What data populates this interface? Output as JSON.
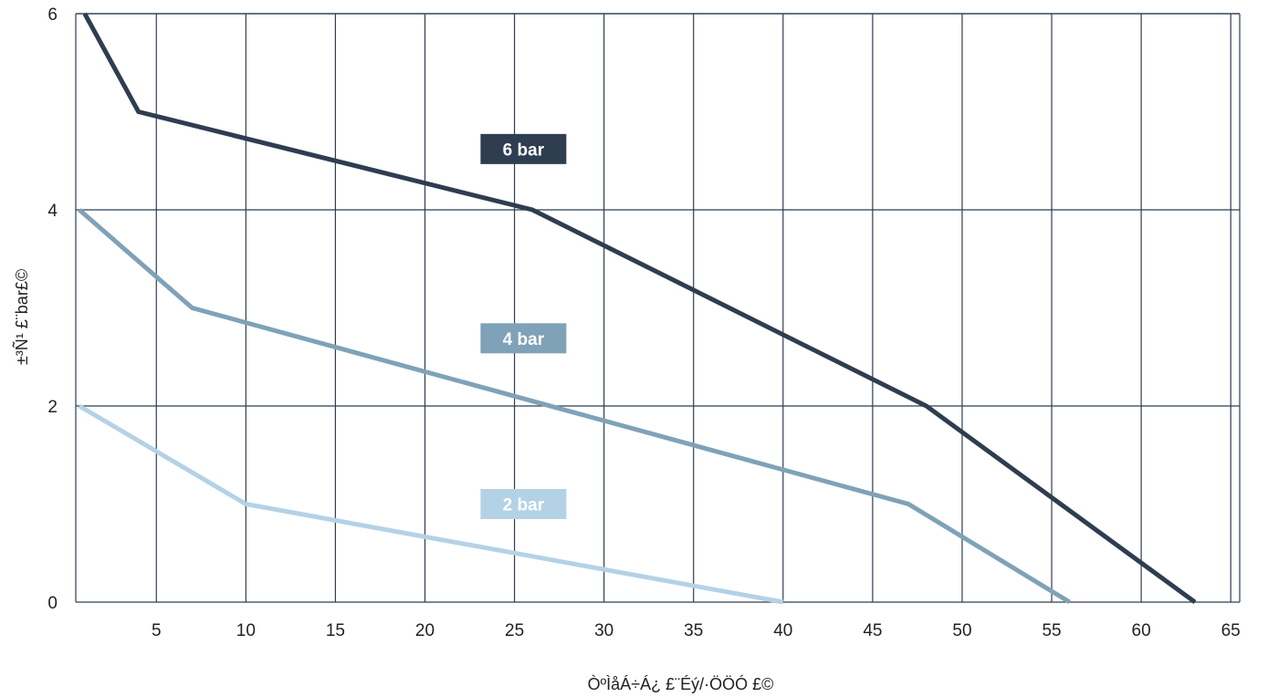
{
  "chart_data": {
    "type": "line",
    "xlabel": "ÒºÌåÁ÷Á¿ £¨Éý/·ÖÖÓ £©",
    "ylabel": "±³Ñ¹ £¨bar£©",
    "xlim": [
      0.5,
      65.5
    ],
    "ylim": [
      0,
      6
    ],
    "x_ticks": [
      5,
      10,
      15,
      20,
      25,
      30,
      35,
      40,
      45,
      50,
      55,
      60,
      65
    ],
    "y_ticks": [
      0,
      2,
      4,
      6
    ],
    "grid": true,
    "series": [
      {
        "name": "6 bar",
        "color": "#2f3d50",
        "points": [
          [
            1,
            6
          ],
          [
            4,
            5
          ],
          [
            26,
            4
          ],
          [
            48,
            2
          ],
          [
            63,
            0
          ]
        ]
      },
      {
        "name": "4 bar",
        "color": "#7fa2b8",
        "points": [
          [
            0.7,
            4
          ],
          [
            7,
            3
          ],
          [
            47,
            1
          ],
          [
            56,
            0
          ]
        ]
      },
      {
        "name": "2 bar",
        "color": "#b4d2e6",
        "points": [
          [
            0.7,
            2
          ],
          [
            10,
            1
          ],
          [
            40,
            0
          ]
        ]
      }
    ],
    "annotations": [
      {
        "text": "6 bar",
        "x": 25.5,
        "y": 4.62,
        "color": "#2f3d50"
      },
      {
        "text": "4 bar",
        "x": 25.5,
        "y": 2.69,
        "color": "#7fa2b8"
      },
      {
        "text": "2 bar",
        "x": 25.5,
        "y": 1.0,
        "color": "#b4d2e6"
      }
    ]
  }
}
